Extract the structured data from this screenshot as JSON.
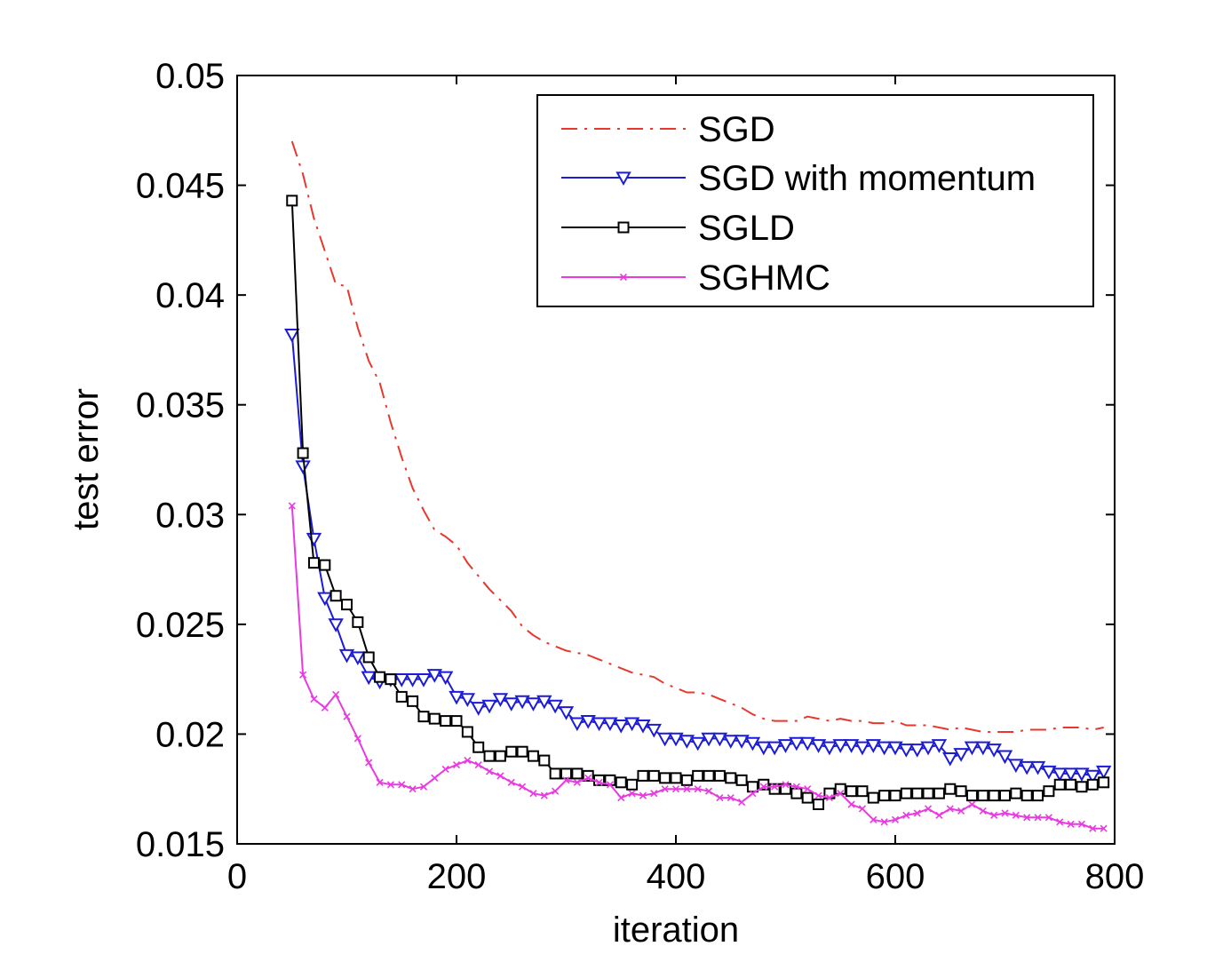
{
  "chart_data": {
    "type": "line",
    "title": "",
    "xlabel": "iteration",
    "ylabel": "test error",
    "xlim": [
      0,
      800
    ],
    "ylim": [
      0.015,
      0.05
    ],
    "xticks": [
      0,
      200,
      400,
      600,
      800
    ],
    "xtick_labels": [
      "0",
      "200",
      "400",
      "600",
      "800"
    ],
    "yticks": [
      0.015,
      0.02,
      0.025,
      0.03,
      0.035,
      0.04,
      0.045,
      0.05
    ],
    "ytick_labels": [
      "0.015",
      "0.02",
      "0.025",
      "0.03",
      "0.035",
      "0.04",
      "0.045",
      "0.05"
    ],
    "grid": false,
    "legend_position": "top-right",
    "series": [
      {
        "name": "SGD",
        "color": "#e8372d",
        "line_style": "dash-dot",
        "marker": "none",
        "x": [
          50,
          60,
          70,
          80,
          90,
          100,
          110,
          120,
          130,
          140,
          150,
          160,
          170,
          180,
          190,
          200,
          210,
          220,
          230,
          240,
          250,
          260,
          270,
          280,
          290,
          300,
          310,
          320,
          330,
          340,
          350,
          360,
          370,
          380,
          390,
          400,
          410,
          420,
          430,
          440,
          450,
          460,
          470,
          480,
          490,
          500,
          510,
          520,
          530,
          540,
          550,
          560,
          570,
          580,
          590,
          600,
          610,
          620,
          630,
          640,
          650,
          660,
          670,
          680,
          690,
          700,
          710,
          720,
          730,
          740,
          750,
          760,
          770,
          780,
          790
        ],
        "values": [
          0.047,
          0.0455,
          0.0435,
          0.042,
          0.0405,
          0.0404,
          0.0385,
          0.037,
          0.036,
          0.0342,
          0.0326,
          0.0312,
          0.0302,
          0.0293,
          0.029,
          0.0286,
          0.0278,
          0.0272,
          0.0266,
          0.0261,
          0.0256,
          0.0249,
          0.0245,
          0.0242,
          0.024,
          0.0238,
          0.0237,
          0.0236,
          0.0234,
          0.0232,
          0.023,
          0.0228,
          0.0227,
          0.0226,
          0.0223,
          0.0221,
          0.0219,
          0.0219,
          0.0218,
          0.0216,
          0.0214,
          0.0212,
          0.0209,
          0.0207,
          0.0206,
          0.0206,
          0.0206,
          0.0208,
          0.0207,
          0.0206,
          0.0207,
          0.0206,
          0.0206,
          0.0205,
          0.0205,
          0.0206,
          0.0204,
          0.0204,
          0.0204,
          0.0203,
          0.0202,
          0.0203,
          0.0202,
          0.0201,
          0.0201,
          0.0201,
          0.0201,
          0.0202,
          0.0202,
          0.0202,
          0.0203,
          0.0203,
          0.0203,
          0.0202,
          0.0203
        ]
      },
      {
        "name": "SGD with momentum",
        "color": "#1c1cd6",
        "line_style": "solid",
        "marker": "triangle-down",
        "x": [
          50,
          60,
          70,
          80,
          90,
          100,
          110,
          120,
          130,
          140,
          150,
          160,
          170,
          180,
          190,
          200,
          210,
          220,
          230,
          240,
          250,
          260,
          270,
          280,
          290,
          300,
          310,
          320,
          330,
          340,
          350,
          360,
          370,
          380,
          390,
          400,
          410,
          420,
          430,
          440,
          450,
          460,
          470,
          480,
          490,
          500,
          510,
          520,
          530,
          540,
          550,
          560,
          570,
          580,
          590,
          600,
          610,
          620,
          630,
          640,
          650,
          660,
          670,
          680,
          690,
          700,
          710,
          720,
          730,
          740,
          750,
          760,
          770,
          780,
          790
        ],
        "values": [
          0.0382,
          0.0322,
          0.0289,
          0.0262,
          0.025,
          0.0236,
          0.0235,
          0.0226,
          0.0224,
          0.0225,
          0.0225,
          0.0225,
          0.0225,
          0.0227,
          0.0226,
          0.0217,
          0.0216,
          0.0212,
          0.0213,
          0.0216,
          0.0214,
          0.0215,
          0.0214,
          0.0215,
          0.0213,
          0.021,
          0.0205,
          0.0206,
          0.0205,
          0.0205,
          0.0204,
          0.0205,
          0.0204,
          0.0202,
          0.0198,
          0.0198,
          0.0197,
          0.0196,
          0.0198,
          0.0198,
          0.0197,
          0.0197,
          0.0196,
          0.0194,
          0.0194,
          0.0195,
          0.0196,
          0.0196,
          0.0195,
          0.0194,
          0.0195,
          0.0195,
          0.0194,
          0.0195,
          0.0194,
          0.0194,
          0.0193,
          0.0193,
          0.0194,
          0.0195,
          0.0189,
          0.0191,
          0.0194,
          0.0194,
          0.0193,
          0.019,
          0.0186,
          0.0185,
          0.0185,
          0.0183,
          0.0182,
          0.0182,
          0.0182,
          0.0181,
          0.0183
        ]
      },
      {
        "name": "SGLD",
        "color": "#000000",
        "line_style": "solid",
        "marker": "square",
        "x": [
          50,
          60,
          70,
          80,
          90,
          100,
          110,
          120,
          130,
          140,
          150,
          160,
          170,
          180,
          190,
          200,
          210,
          220,
          230,
          240,
          250,
          260,
          270,
          280,
          290,
          300,
          310,
          320,
          330,
          340,
          350,
          360,
          370,
          380,
          390,
          400,
          410,
          420,
          430,
          440,
          450,
          460,
          470,
          480,
          490,
          500,
          510,
          520,
          530,
          540,
          550,
          560,
          570,
          580,
          590,
          600,
          610,
          620,
          630,
          640,
          650,
          660,
          670,
          680,
          690,
          700,
          710,
          720,
          730,
          740,
          750,
          760,
          770,
          780,
          790
        ],
        "values": [
          0.0443,
          0.0328,
          0.0278,
          0.0277,
          0.0263,
          0.0259,
          0.0251,
          0.0235,
          0.0226,
          0.0225,
          0.0217,
          0.0215,
          0.0208,
          0.0207,
          0.0206,
          0.0206,
          0.0201,
          0.0194,
          0.019,
          0.019,
          0.0192,
          0.0192,
          0.019,
          0.0188,
          0.0182,
          0.0182,
          0.0182,
          0.0181,
          0.0179,
          0.0179,
          0.0178,
          0.0177,
          0.0181,
          0.0181,
          0.018,
          0.018,
          0.0179,
          0.0181,
          0.0181,
          0.0181,
          0.018,
          0.0179,
          0.0176,
          0.0177,
          0.0175,
          0.0175,
          0.0173,
          0.0171,
          0.0168,
          0.0173,
          0.0175,
          0.0174,
          0.0174,
          0.0171,
          0.0172,
          0.0172,
          0.0173,
          0.0173,
          0.0173,
          0.0173,
          0.0175,
          0.0174,
          0.0172,
          0.0172,
          0.0172,
          0.0172,
          0.0173,
          0.0172,
          0.0172,
          0.0174,
          0.0177,
          0.0177,
          0.0176,
          0.0177,
          0.0178
        ]
      },
      {
        "name": "SGHMC",
        "color": "#e83ae0",
        "line_style": "solid",
        "marker": "x",
        "x": [
          50,
          60,
          70,
          80,
          90,
          100,
          110,
          120,
          130,
          140,
          150,
          160,
          170,
          180,
          190,
          200,
          210,
          220,
          230,
          240,
          250,
          260,
          270,
          280,
          290,
          300,
          310,
          320,
          330,
          340,
          350,
          360,
          370,
          380,
          390,
          400,
          410,
          420,
          430,
          440,
          450,
          460,
          470,
          480,
          490,
          500,
          510,
          520,
          530,
          540,
          550,
          560,
          570,
          580,
          590,
          600,
          610,
          620,
          630,
          640,
          650,
          660,
          670,
          680,
          690,
          700,
          710,
          720,
          730,
          740,
          750,
          760,
          770,
          780,
          790
        ],
        "values": [
          0.0304,
          0.0227,
          0.0216,
          0.0212,
          0.0218,
          0.0208,
          0.0198,
          0.0187,
          0.0178,
          0.0177,
          0.0177,
          0.0175,
          0.0176,
          0.018,
          0.0184,
          0.0186,
          0.0188,
          0.0186,
          0.0183,
          0.0181,
          0.0178,
          0.0176,
          0.0173,
          0.0172,
          0.0174,
          0.0179,
          0.0178,
          0.018,
          0.0178,
          0.0177,
          0.0171,
          0.0173,
          0.0172,
          0.0173,
          0.0175,
          0.0175,
          0.0175,
          0.0175,
          0.0174,
          0.0171,
          0.0171,
          0.0169,
          0.0173,
          0.0176,
          0.0176,
          0.0177,
          0.0176,
          0.0175,
          0.0172,
          0.0171,
          0.0173,
          0.0168,
          0.0166,
          0.0161,
          0.016,
          0.0161,
          0.0163,
          0.0164,
          0.0166,
          0.0163,
          0.0166,
          0.0165,
          0.0168,
          0.0165,
          0.0163,
          0.0164,
          0.0163,
          0.0162,
          0.0162,
          0.0162,
          0.016,
          0.0159,
          0.0159,
          0.0157,
          0.0157
        ]
      }
    ]
  }
}
